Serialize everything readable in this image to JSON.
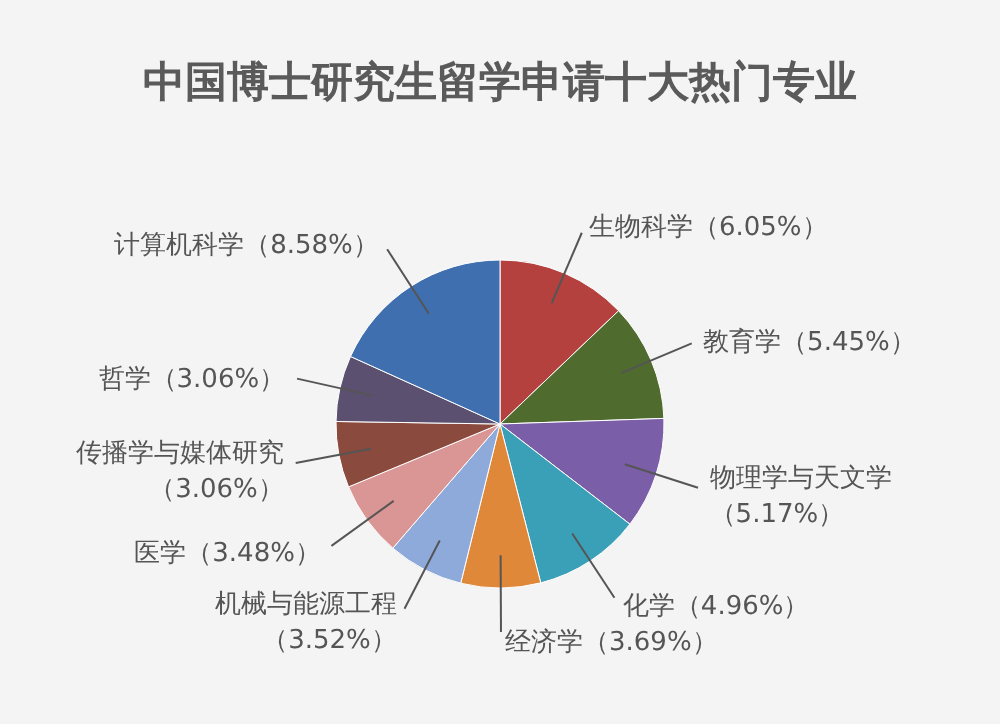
{
  "chart_data": {
    "type": "pie",
    "title": "中国博士研究生留学申请十大热门专业",
    "categories": [
      "生物科学",
      "教育学",
      "物理学与天文学",
      "化学",
      "经济学",
      "机械与能源工程",
      "医学",
      "传播学与媒体研究",
      "哲学",
      "计算机科学"
    ],
    "values": [
      6.05,
      5.45,
      5.17,
      4.96,
      3.69,
      3.52,
      3.48,
      3.06,
      3.06,
      8.58
    ],
    "value_labels": [
      "（6.05%）",
      "（5.45%）",
      "（5.17%）",
      "（4.96%）",
      "（3.69%）",
      "（3.52%）",
      "（3.48%）",
      "（3.06%）",
      "（3.06%）",
      "（8.58%）"
    ],
    "colors": [
      "#b5413f",
      "#4f6b2e",
      "#7b5ea8",
      "#3aa0b8",
      "#e0883a",
      "#8eaadb",
      "#d99694",
      "#8b4a3e",
      "#5b5070",
      "#3f6faf"
    ]
  }
}
